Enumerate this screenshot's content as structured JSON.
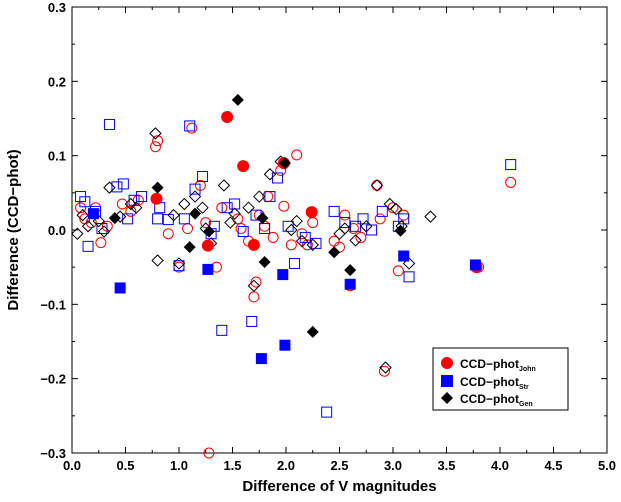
{
  "chart_data": {
    "type": "scatter",
    "xlabel": "Difference of V magnitudes",
    "ylabel": "Difference (CCD−phot)",
    "xlim": [
      0.0,
      5.0
    ],
    "ylim": [
      -0.3,
      0.3
    ],
    "xticks": [
      "0.0",
      "0.5",
      "1.0",
      "1.5",
      "2.0",
      "2.5",
      "3.0",
      "3.5",
      "4.0",
      "4.5",
      "5.0"
    ],
    "yticks": [
      "0.3",
      "0.2",
      "0.1",
      "0.0",
      "−0.1",
      "−0.2",
      "−0.3"
    ],
    "legend_position": "bottom-right",
    "series": [
      {
        "name_main": "CCD−phot",
        "name_sub": "John",
        "marker": "circle",
        "color": "#ff0000",
        "filled": [
          [
            0.79,
            0.042
          ],
          [
            1.45,
            0.152
          ],
          [
            1.6,
            0.086
          ],
          [
            1.7,
            -0.02
          ],
          [
            1.27,
            -0.021
          ],
          [
            1.98,
            0.09
          ],
          [
            2.24,
            0.024
          ],
          [
            3.78,
            -0.05
          ]
        ],
        "open": [
          [
            0.08,
            0.03
          ],
          [
            0.12,
            0.015
          ],
          [
            0.18,
            0.01
          ],
          [
            0.22,
            0.03
          ],
          [
            0.27,
            -0.017
          ],
          [
            0.33,
            0.005
          ],
          [
            0.47,
            0.035
          ],
          [
            0.55,
            0.025
          ],
          [
            0.62,
            0.04
          ],
          [
            0.78,
            0.112
          ],
          [
            0.8,
            0.12
          ],
          [
            0.9,
            -0.005
          ],
          [
            1.0,
            -0.05
          ],
          [
            1.08,
            0.002
          ],
          [
            1.12,
            0.137
          ],
          [
            1.2,
            0.06
          ],
          [
            1.25,
            0.01
          ],
          [
            1.28,
            -0.3
          ],
          [
            1.35,
            -0.05
          ],
          [
            1.4,
            0.03
          ],
          [
            1.55,
            0.015
          ],
          [
            1.58,
            0.002
          ],
          [
            1.65,
            -0.015
          ],
          [
            1.7,
            -0.09
          ],
          [
            1.72,
            -0.07
          ],
          [
            1.75,
            0.02
          ],
          [
            1.8,
            0.005
          ],
          [
            1.83,
            0.045
          ],
          [
            1.88,
            -0.01
          ],
          [
            1.95,
            0.08
          ],
          [
            1.98,
            0.032
          ],
          [
            2.05,
            -0.02
          ],
          [
            2.1,
            0.101
          ],
          [
            2.15,
            -0.005
          ],
          [
            2.2,
            -0.02
          ],
          [
            2.25,
            0.01
          ],
          [
            2.45,
            -0.015
          ],
          [
            2.5,
            -0.023
          ],
          [
            2.55,
            0.02
          ],
          [
            2.6,
            -0.075
          ],
          [
            2.63,
            0.002
          ],
          [
            2.7,
            -0.01
          ],
          [
            2.85,
            0.06
          ],
          [
            2.88,
            0.015
          ],
          [
            2.92,
            -0.19
          ],
          [
            3.0,
            0.03
          ],
          [
            3.05,
            -0.055
          ],
          [
            3.1,
            0.02
          ],
          [
            3.8,
            -0.05
          ],
          [
            4.1,
            0.064
          ]
        ]
      },
      {
        "name_main": "CCD−phot",
        "name_sub": "Str",
        "marker": "square",
        "color": "#0000ff",
        "filled": [
          [
            0.2,
            0.022
          ],
          [
            0.45,
            -0.078
          ],
          [
            1.27,
            -0.053
          ],
          [
            1.77,
            -0.173
          ],
          [
            1.97,
            -0.06
          ],
          [
            1.99,
            -0.155
          ],
          [
            2.6,
            -0.073
          ],
          [
            3.1,
            -0.035
          ],
          [
            3.77,
            -0.047
          ]
        ],
        "open": [
          [
            0.08,
            0.045
          ],
          [
            0.12,
            0.038
          ],
          [
            0.15,
            -0.022
          ],
          [
            0.22,
            0.025
          ],
          [
            0.28,
            0.002
          ],
          [
            0.35,
            0.142
          ],
          [
            0.42,
            0.058
          ],
          [
            0.48,
            0.062
          ],
          [
            0.52,
            0.015
          ],
          [
            0.58,
            0.04
          ],
          [
            0.65,
            0.045
          ],
          [
            0.8,
            0.015
          ],
          [
            0.82,
            0.03
          ],
          [
            0.9,
            0.014
          ],
          [
            1.0,
            -0.048
          ],
          [
            1.05,
            0.015
          ],
          [
            1.1,
            0.14
          ],
          [
            1.15,
            0.055
          ],
          [
            1.22,
            0.072
          ],
          [
            1.3,
            -0.005
          ],
          [
            1.33,
            0.005
          ],
          [
            1.4,
            -0.135
          ],
          [
            1.45,
            0.03
          ],
          [
            1.52,
            0.035
          ],
          [
            1.6,
            -0.002
          ],
          [
            1.68,
            -0.123
          ],
          [
            1.72,
            0.02
          ],
          [
            1.8,
            0.002
          ],
          [
            1.85,
            0.045
          ],
          [
            1.92,
            0.07
          ],
          [
            2.02,
            0.005
          ],
          [
            2.08,
            -0.045
          ],
          [
            2.18,
            -0.01
          ],
          [
            2.28,
            -0.018
          ],
          [
            2.38,
            -0.245
          ],
          [
            2.45,
            0.025
          ],
          [
            2.55,
            0.01
          ],
          [
            2.65,
            0.005
          ],
          [
            2.72,
            0.015
          ],
          [
            2.8,
            0.0
          ],
          [
            2.9,
            0.025
          ],
          [
            3.05,
            0.005
          ],
          [
            3.1,
            0.015
          ],
          [
            3.15,
            -0.063
          ],
          [
            4.1,
            0.088
          ]
        ]
      },
      {
        "name_main": "CCD−phot",
        "name_sub": "Gen",
        "marker": "diamond",
        "color": "#000000",
        "filled": [
          [
            0.4,
            0.016
          ],
          [
            0.8,
            0.057
          ],
          [
            1.1,
            -0.023
          ],
          [
            1.15,
            0.022
          ],
          [
            1.28,
            -0.002
          ],
          [
            1.55,
            0.175
          ],
          [
            1.8,
            -0.043
          ],
          [
            1.78,
            0.016
          ],
          [
            1.99,
            0.09
          ],
          [
            2.25,
            -0.137
          ],
          [
            2.45,
            -0.03
          ],
          [
            2.6,
            -0.054
          ],
          [
            3.07,
            -0.001
          ]
        ],
        "open": [
          [
            0.05,
            -0.005
          ],
          [
            0.1,
            0.02
          ],
          [
            0.15,
            0.005
          ],
          [
            0.25,
            0.012
          ],
          [
            0.3,
            -0.002
          ],
          [
            0.35,
            0.057
          ],
          [
            0.45,
            0.018
          ],
          [
            0.55,
            0.035
          ],
          [
            0.6,
            0.03
          ],
          [
            0.78,
            0.13
          ],
          [
            0.8,
            -0.041
          ],
          [
            0.95,
            0.02
          ],
          [
            1.0,
            -0.045
          ],
          [
            1.05,
            0.035
          ],
          [
            1.15,
            0.045
          ],
          [
            1.22,
            0.03
          ],
          [
            1.25,
            0.002
          ],
          [
            1.3,
            -0.018
          ],
          [
            1.42,
            0.06
          ],
          [
            1.48,
            0.01
          ],
          [
            1.52,
            0.022
          ],
          [
            1.65,
            0.03
          ],
          [
            1.7,
            -0.075
          ],
          [
            1.75,
            0.045
          ],
          [
            1.85,
            0.075
          ],
          [
            1.95,
            0.092
          ],
          [
            2.05,
            0.0
          ],
          [
            2.1,
            0.012
          ],
          [
            2.15,
            -0.015
          ],
          [
            2.25,
            -0.02
          ],
          [
            2.5,
            -0.005
          ],
          [
            2.55,
            0.002
          ],
          [
            2.65,
            -0.014
          ],
          [
            2.75,
            0.005
          ],
          [
            2.85,
            0.06
          ],
          [
            2.93,
            -0.185
          ],
          [
            2.97,
            0.035
          ],
          [
            3.03,
            0.028
          ],
          [
            3.08,
            0.005
          ],
          [
            3.15,
            -0.045
          ],
          [
            3.35,
            0.018
          ]
        ]
      }
    ]
  }
}
